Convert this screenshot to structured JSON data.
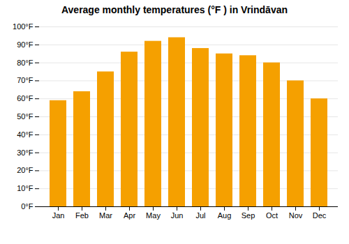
{
  "chart_data": {
    "type": "bar",
    "title": "Average monthly temperatures (°F ) in Vrindāvan",
    "categories": [
      "Jan",
      "Feb",
      "Mar",
      "Apr",
      "May",
      "Jun",
      "Jul",
      "Aug",
      "Sep",
      "Oct",
      "Nov",
      "Dec"
    ],
    "values": [
      59,
      64,
      75,
      86,
      92,
      94,
      88,
      85,
      84,
      80,
      70,
      60
    ],
    "color": "#F5A000",
    "ylim": [
      0,
      100
    ],
    "yticks": [
      {
        "value": 0,
        "label": "0°F"
      },
      {
        "value": 10,
        "label": "10°F"
      },
      {
        "value": 20,
        "label": "20°F"
      },
      {
        "value": 30,
        "label": "30°F"
      },
      {
        "value": 40,
        "label": "40°F"
      },
      {
        "value": 50,
        "label": "50°F"
      },
      {
        "value": 60,
        "label": "60°F"
      },
      {
        "value": 70,
        "label": "70°F"
      },
      {
        "value": 80,
        "label": "80°F"
      },
      {
        "value": 90,
        "label": "90°F"
      },
      {
        "value": 100,
        "label": "100°F"
      }
    ],
    "grid": true
  }
}
